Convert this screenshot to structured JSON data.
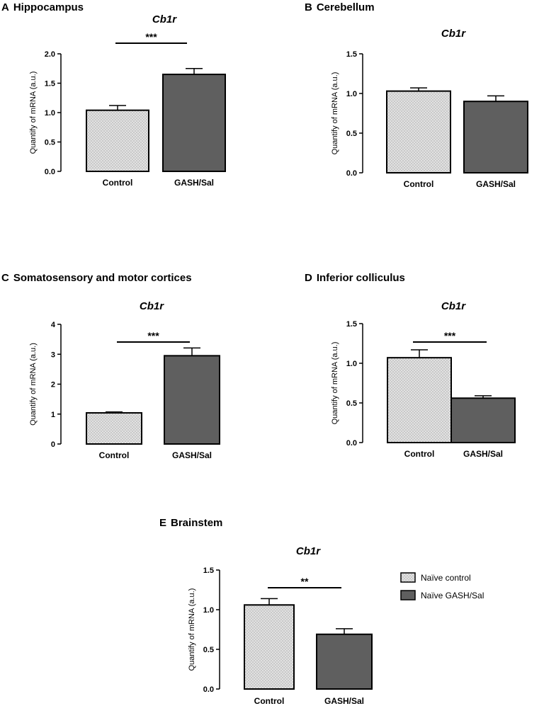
{
  "colors": {
    "control_fill": "#c9c9c9",
    "control_dot": "#ffffff",
    "gash_fill": "#5f5f5f",
    "stroke": "#000000"
  },
  "legend": {
    "entries": [
      {
        "label": "Naïve control",
        "pattern": "control"
      },
      {
        "label": "Naïve GASH/Sal",
        "pattern": "gash"
      }
    ]
  },
  "chart_data": [
    {
      "panel": "A",
      "region": "Hippocampus",
      "type": "bar",
      "title": "Cb1r",
      "ylabel": "Quantify of mRNA (a.u.)",
      "ylim": [
        0,
        2.0
      ],
      "yticks": [
        "0.0",
        "0.5",
        "1.0",
        "1.5",
        "2.0"
      ],
      "ytick_values": [
        0,
        0.5,
        1.0,
        1.5,
        2.0
      ],
      "categories": [
        "Control",
        "GASH/Sal"
      ],
      "values": [
        1.04,
        1.65
      ],
      "errors": [
        0.08,
        0.1
      ],
      "significance": "***"
    },
    {
      "panel": "B",
      "region": "Cerebellum",
      "type": "bar",
      "title": "Cb1r",
      "ylabel": "Quantify of mRNA (a.u.)",
      "ylim": [
        0,
        1.5
      ],
      "yticks": [
        "0.0",
        "0.5",
        "1.0",
        "1.5"
      ],
      "ytick_values": [
        0,
        0.5,
        1.0,
        1.5
      ],
      "categories": [
        "Control",
        "GASH/Sal"
      ],
      "values": [
        1.03,
        0.9
      ],
      "errors": [
        0.04,
        0.07
      ],
      "significance": ""
    },
    {
      "panel": "C",
      "region": "Somatosensory and motor cortices",
      "type": "bar",
      "title": "Cb1r",
      "ylabel": "Quantify of mRNA (a.u.)",
      "ylim": [
        0,
        4
      ],
      "yticks": [
        "0",
        "1",
        "2",
        "3",
        "4"
      ],
      "ytick_values": [
        0,
        1,
        2,
        3,
        4
      ],
      "categories": [
        "Control",
        "GASH/Sal"
      ],
      "values": [
        1.04,
        2.95
      ],
      "errors": [
        0.03,
        0.26
      ],
      "significance": "***"
    },
    {
      "panel": "D",
      "region": "Inferior colliculus",
      "type": "bar",
      "title": "Cb1r",
      "ylabel": "Quantify of mRNA (a.u.)",
      "ylim": [
        0,
        1.5
      ],
      "yticks": [
        "0.0",
        "0.5",
        "1.0",
        "1.5"
      ],
      "ytick_values": [
        0,
        0.5,
        1.0,
        1.5
      ],
      "categories": [
        "Control",
        "GASH/Sal"
      ],
      "values": [
        1.07,
        0.56
      ],
      "errors": [
        0.1,
        0.03
      ],
      "significance": "***"
    },
    {
      "panel": "E",
      "region": "Brainstem",
      "type": "bar",
      "title": "Cb1r",
      "ylabel": "Quantify of mRNA (a.u.)",
      "ylim": [
        0,
        1.5
      ],
      "yticks": [
        "0.0",
        "0.5",
        "1.0",
        "1.5"
      ],
      "ytick_values": [
        0,
        0.5,
        1.0,
        1.5
      ],
      "categories": [
        "Control",
        "GASH/Sal"
      ],
      "values": [
        1.06,
        0.69
      ],
      "errors": [
        0.08,
        0.07
      ],
      "significance": "**"
    }
  ]
}
